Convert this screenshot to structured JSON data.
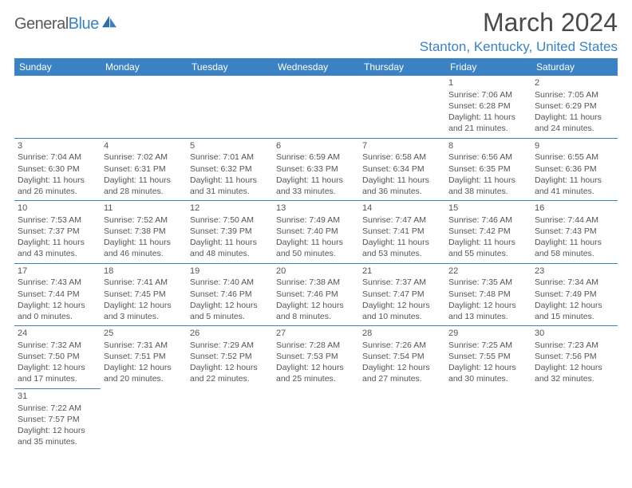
{
  "logo": {
    "part1": "General",
    "part2": "Blue"
  },
  "title": "March 2024",
  "location": "Stanton, Kentucky, United States",
  "colors": {
    "header_bg": "#3b82c4",
    "header_fg": "#ffffff",
    "border": "#3b82c4",
    "text": "#555555",
    "accent": "#3b82c4",
    "page_bg": "#ffffff"
  },
  "typography": {
    "title_fontsize": 32,
    "location_fontsize": 17,
    "header_fontsize": 12,
    "cell_fontsize": 10.5
  },
  "day_headers": [
    "Sunday",
    "Monday",
    "Tuesday",
    "Wednesday",
    "Thursday",
    "Friday",
    "Saturday"
  ],
  "weeks": [
    [
      null,
      null,
      null,
      null,
      null,
      {
        "n": "1",
        "sr": "7:06 AM",
        "ss": "6:28 PM",
        "dl": "11 hours and 21 minutes."
      },
      {
        "n": "2",
        "sr": "7:05 AM",
        "ss": "6:29 PM",
        "dl": "11 hours and 24 minutes."
      }
    ],
    [
      {
        "n": "3",
        "sr": "7:04 AM",
        "ss": "6:30 PM",
        "dl": "11 hours and 26 minutes."
      },
      {
        "n": "4",
        "sr": "7:02 AM",
        "ss": "6:31 PM",
        "dl": "11 hours and 28 minutes."
      },
      {
        "n": "5",
        "sr": "7:01 AM",
        "ss": "6:32 PM",
        "dl": "11 hours and 31 minutes."
      },
      {
        "n": "6",
        "sr": "6:59 AM",
        "ss": "6:33 PM",
        "dl": "11 hours and 33 minutes."
      },
      {
        "n": "7",
        "sr": "6:58 AM",
        "ss": "6:34 PM",
        "dl": "11 hours and 36 minutes."
      },
      {
        "n": "8",
        "sr": "6:56 AM",
        "ss": "6:35 PM",
        "dl": "11 hours and 38 minutes."
      },
      {
        "n": "9",
        "sr": "6:55 AM",
        "ss": "6:36 PM",
        "dl": "11 hours and 41 minutes."
      }
    ],
    [
      {
        "n": "10",
        "sr": "7:53 AM",
        "ss": "7:37 PM",
        "dl": "11 hours and 43 minutes."
      },
      {
        "n": "11",
        "sr": "7:52 AM",
        "ss": "7:38 PM",
        "dl": "11 hours and 46 minutes."
      },
      {
        "n": "12",
        "sr": "7:50 AM",
        "ss": "7:39 PM",
        "dl": "11 hours and 48 minutes."
      },
      {
        "n": "13",
        "sr": "7:49 AM",
        "ss": "7:40 PM",
        "dl": "11 hours and 50 minutes."
      },
      {
        "n": "14",
        "sr": "7:47 AM",
        "ss": "7:41 PM",
        "dl": "11 hours and 53 minutes."
      },
      {
        "n": "15",
        "sr": "7:46 AM",
        "ss": "7:42 PM",
        "dl": "11 hours and 55 minutes."
      },
      {
        "n": "16",
        "sr": "7:44 AM",
        "ss": "7:43 PM",
        "dl": "11 hours and 58 minutes."
      }
    ],
    [
      {
        "n": "17",
        "sr": "7:43 AM",
        "ss": "7:44 PM",
        "dl": "12 hours and 0 minutes."
      },
      {
        "n": "18",
        "sr": "7:41 AM",
        "ss": "7:45 PM",
        "dl": "12 hours and 3 minutes."
      },
      {
        "n": "19",
        "sr": "7:40 AM",
        "ss": "7:46 PM",
        "dl": "12 hours and 5 minutes."
      },
      {
        "n": "20",
        "sr": "7:38 AM",
        "ss": "7:46 PM",
        "dl": "12 hours and 8 minutes."
      },
      {
        "n": "21",
        "sr": "7:37 AM",
        "ss": "7:47 PM",
        "dl": "12 hours and 10 minutes."
      },
      {
        "n": "22",
        "sr": "7:35 AM",
        "ss": "7:48 PM",
        "dl": "12 hours and 13 minutes."
      },
      {
        "n": "23",
        "sr": "7:34 AM",
        "ss": "7:49 PM",
        "dl": "12 hours and 15 minutes."
      }
    ],
    [
      {
        "n": "24",
        "sr": "7:32 AM",
        "ss": "7:50 PM",
        "dl": "12 hours and 17 minutes."
      },
      {
        "n": "25",
        "sr": "7:31 AM",
        "ss": "7:51 PM",
        "dl": "12 hours and 20 minutes."
      },
      {
        "n": "26",
        "sr": "7:29 AM",
        "ss": "7:52 PM",
        "dl": "12 hours and 22 minutes."
      },
      {
        "n": "27",
        "sr": "7:28 AM",
        "ss": "7:53 PM",
        "dl": "12 hours and 25 minutes."
      },
      {
        "n": "28",
        "sr": "7:26 AM",
        "ss": "7:54 PM",
        "dl": "12 hours and 27 minutes."
      },
      {
        "n": "29",
        "sr": "7:25 AM",
        "ss": "7:55 PM",
        "dl": "12 hours and 30 minutes."
      },
      {
        "n": "30",
        "sr": "7:23 AM",
        "ss": "7:56 PM",
        "dl": "12 hours and 32 minutes."
      }
    ],
    [
      {
        "n": "31",
        "sr": "7:22 AM",
        "ss": "7:57 PM",
        "dl": "12 hours and 35 minutes."
      },
      null,
      null,
      null,
      null,
      null,
      null
    ]
  ],
  "labels": {
    "sunrise": "Sunrise:",
    "sunset": "Sunset:",
    "daylight": "Daylight:"
  }
}
